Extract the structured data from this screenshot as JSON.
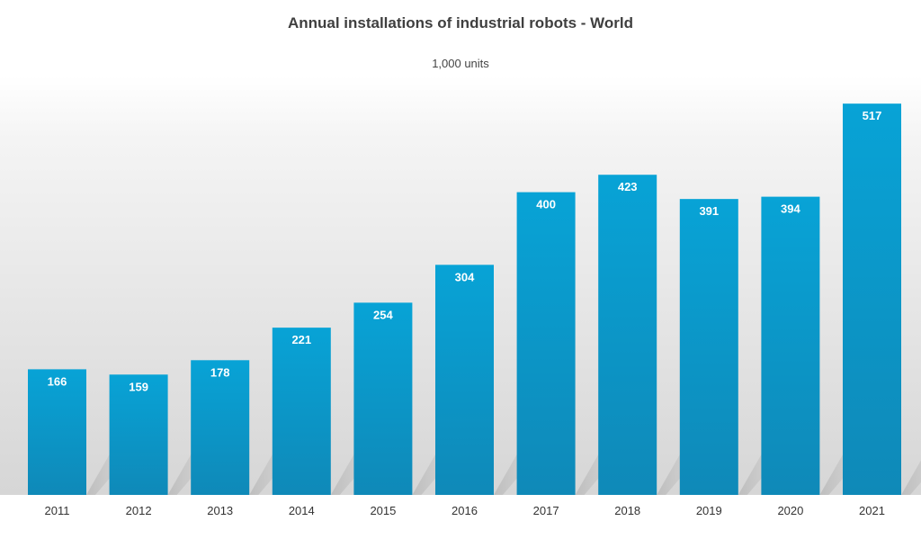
{
  "chart_data": {
    "type": "bar",
    "title": "Annual installations of industrial robots - World",
    "subtitle": "1,000 units",
    "categories": [
      "2011",
      "2012",
      "2013",
      "2014",
      "2015",
      "2016",
      "2017",
      "2018",
      "2019",
      "2020",
      "2021"
    ],
    "values": [
      166,
      159,
      178,
      221,
      254,
      304,
      400,
      423,
      391,
      394,
      517
    ],
    "data_labels": [
      "166",
      "159",
      "178",
      "221",
      "254",
      "304",
      "400",
      "423",
      "391",
      "394",
      "517"
    ],
    "xlabel": "",
    "ylabel": "",
    "ylim": [
      0,
      560
    ],
    "grid": false,
    "legend": "none",
    "colors": {
      "bar_top": "#08a3d6",
      "bar_bottom": "#0f89b8",
      "background_shade": "#dcdcdc",
      "label": "#ffffff",
      "title": "#3f3f3f"
    }
  }
}
